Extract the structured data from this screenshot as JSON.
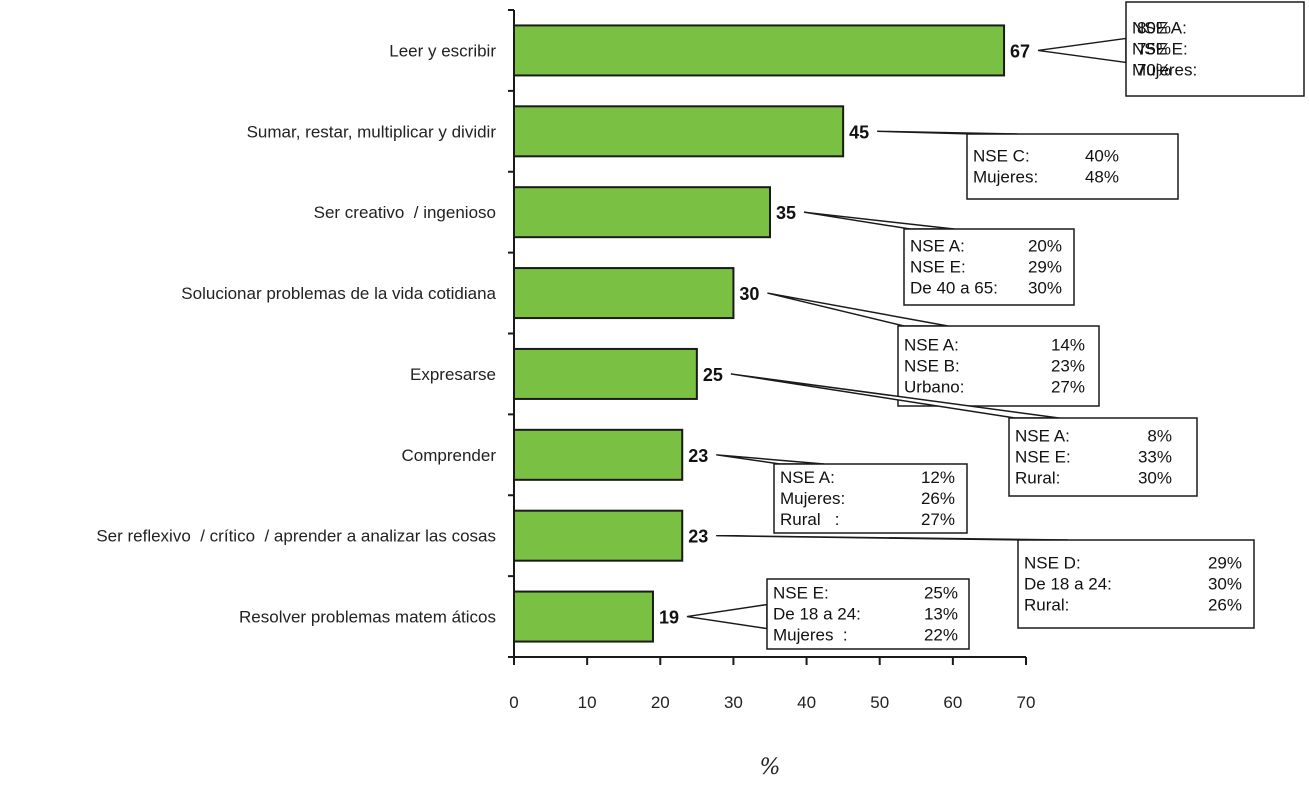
{
  "chart_data": {
    "type": "bar",
    "orientation": "horizontal",
    "categories": [
      "Leer y escribir",
      "Sumar, restar, multiplicar y dividir",
      "Ser creativo  / ingenioso",
      "Solucionar problemas de la vida cotidiana",
      "Expresarse",
      "Comprender",
      "Ser reflexivo  / crítico  / aprender a analizar las cosas",
      "Resolver problemas matem áticos"
    ],
    "values": [
      67,
      45,
      35,
      30,
      25,
      23,
      23,
      19
    ],
    "value_labels": [
      "67",
      "45",
      "35",
      "30",
      "25",
      "23",
      "23",
      "19"
    ],
    "xlim": [
      0,
      70
    ],
    "xticks": [
      0,
      10,
      20,
      30,
      40,
      50,
      60,
      70
    ],
    "xtick_labels": [
      "0",
      "10",
      "20",
      "30",
      "40",
      "50",
      "60",
      "70"
    ],
    "xlabel": "%",
    "ylabel": "",
    "title": "",
    "grid": false,
    "bar_color": "#7ac143",
    "bar_edge_color": "#1a1a1a",
    "annotations": [
      {
        "category_index": 0,
        "rows": [
          [
            "NSE A:",
            "80%"
          ],
          [
            "NSE E:",
            "75%"
          ],
          [
            "Mujeres:",
            "70%"
          ]
        ]
      },
      {
        "category_index": 1,
        "rows": [
          [
            "NSE C:",
            "40%"
          ],
          [
            "Mujeres:",
            "48%"
          ]
        ]
      },
      {
        "category_index": 2,
        "rows": [
          [
            "NSE A:",
            "20%"
          ],
          [
            "NSE E:",
            "29%"
          ],
          [
            "De 40 a 65:",
            "30%"
          ]
        ]
      },
      {
        "category_index": 3,
        "rows": [
          [
            "NSE A:",
            "14%"
          ],
          [
            "NSE B:",
            "23%"
          ],
          [
            "Urbano:",
            "27%"
          ]
        ]
      },
      {
        "category_index": 4,
        "rows": [
          [
            "NSE A:",
            "8%"
          ],
          [
            "NSE E:",
            "33%"
          ],
          [
            "Rural:",
            "30%"
          ]
        ]
      },
      {
        "category_index": 5,
        "rows": [
          [
            "NSE A:",
            "12%"
          ],
          [
            "Mujeres:",
            "26%"
          ],
          [
            "Rural   :",
            "27%"
          ]
        ]
      },
      {
        "category_index": 6,
        "rows": [
          [
            "NSE D:",
            "29%"
          ],
          [
            "De 18 a 24:",
            "30%"
          ],
          [
            "Rural:",
            "26%"
          ]
        ]
      },
      {
        "category_index": 7,
        "rows": [
          [
            "NSE E:",
            "25%"
          ],
          [
            "De 18 a 24:",
            "13%"
          ],
          [
            "Mujeres  :",
            "22%"
          ]
        ]
      }
    ]
  }
}
